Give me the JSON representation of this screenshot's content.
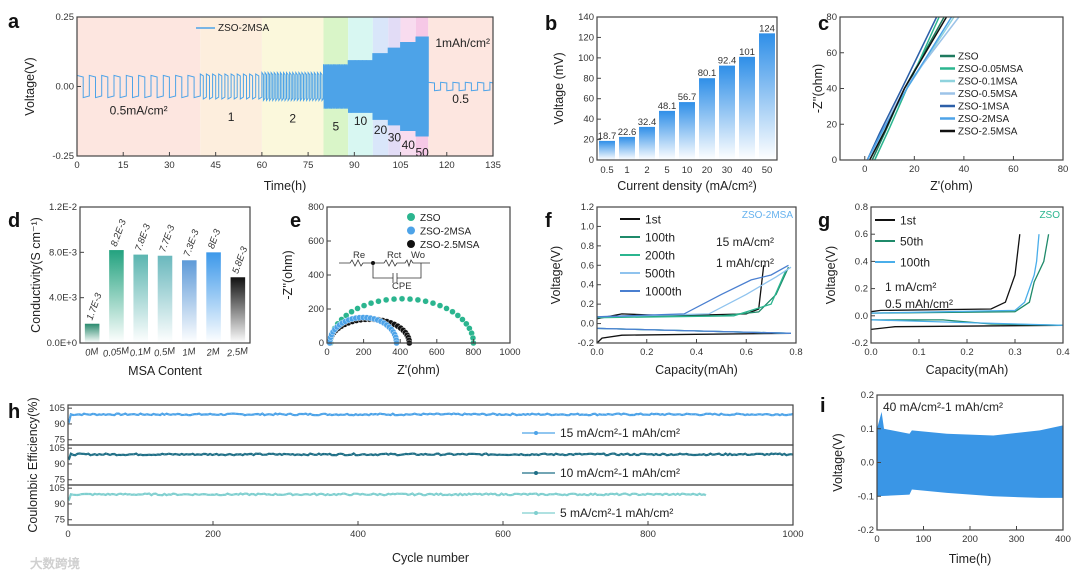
{
  "watermark": "大数跨境",
  "chart_data": [
    {
      "panel": "a",
      "type": "line",
      "xlabel": "Time(h)",
      "ylabel": "Voltage(V)",
      "xlim": [
        0,
        135
      ],
      "ylim": [
        -0.25,
        0.25
      ],
      "xticks": [
        0,
        15,
        30,
        45,
        60,
        75,
        90,
        105,
        120,
        135
      ],
      "xtick_labels": [
        "0",
        "15",
        "30",
        "45",
        "60",
        "75",
        "90",
        "105",
        "120",
        "135"
      ],
      "yticks": [
        -0.25,
        0,
        0.25
      ],
      "ytick_labels": [
        "-0.25",
        "0.00",
        "0.25"
      ],
      "legend": [
        "ZSO-2MSA"
      ],
      "series_color": "#4da3e8",
      "annotation": "1mAh/cm²",
      "segments": [
        {
          "label": "0.5mA/cm²",
          "current": 0.5,
          "start": 0,
          "end": 40,
          "overpotential": 0.04,
          "bg": "#fde6e0"
        },
        {
          "label": "1",
          "current": 1,
          "start": 40,
          "end": 60,
          "overpotential": 0.045,
          "bg": "#fdeedd"
        },
        {
          "label": "2",
          "current": 2,
          "start": 60,
          "end": 80,
          "overpotential": 0.05,
          "bg": "#fbf8dc"
        },
        {
          "label": "5",
          "current": 5,
          "start": 80,
          "end": 88,
          "overpotential": 0.08,
          "bg": "#d9f5c8"
        },
        {
          "label": "10",
          "current": 10,
          "start": 88,
          "end": 96,
          "overpotential": 0.095,
          "bg": "#d8f7f2"
        },
        {
          "label": "20",
          "current": 20,
          "start": 96,
          "end": 101,
          "overpotential": 0.12,
          "bg": "#d9e6fa"
        },
        {
          "label": "30",
          "current": 30,
          "start": 101,
          "end": 105,
          "overpotential": 0.14,
          "bg": "#e2dcf6"
        },
        {
          "label": "40",
          "current": 40,
          "start": 105,
          "end": 110,
          "overpotential": 0.16,
          "bg": "#f8dcef"
        },
        {
          "label": "50",
          "current": 50,
          "start": 110,
          "end": 114,
          "overpotential": 0.18,
          "bg": "#f6c8e6"
        },
        {
          "label": "0.5",
          "current": 0.5,
          "start": 114,
          "end": 135,
          "overpotential": 0.015,
          "bg": "#fde6e0"
        }
      ]
    },
    {
      "panel": "b",
      "type": "bar",
      "xlabel": "Current density (mA/cm²)",
      "ylabel": "Voltage (mV)",
      "categories": [
        "0.5",
        "1",
        "2",
        "5",
        "10",
        "20",
        "30",
        "40",
        "50"
      ],
      "values": [
        18.7,
        22.6,
        32.4,
        48.1,
        56.7,
        80.1,
        92.4,
        101,
        124
      ],
      "ylim": [
        0,
        140
      ],
      "yticks": [
        0,
        20,
        40,
        60,
        80,
        100,
        120,
        140
      ],
      "ytick_labels": [
        "0",
        "20",
        "40",
        "60",
        "80",
        "100",
        "120",
        "140"
      ],
      "bar_color": "#2f8fe8"
    },
    {
      "panel": "c",
      "type": "line",
      "xlabel": "Z'(ohm)",
      "ylabel": "-Z''(ohm)",
      "xlim": [
        -10,
        80
      ],
      "ylim": [
        0,
        80
      ],
      "xticks": [
        0,
        20,
        40,
        60,
        80
      ],
      "xtick_labels": [
        "0",
        "20",
        "40",
        "60",
        "80"
      ],
      "yticks": [
        0,
        20,
        40,
        60,
        80
      ],
      "ytick_labels": [
        "0",
        "20",
        "40",
        "60",
        "80"
      ],
      "series": [
        {
          "name": "ZSO",
          "color": "#1f7a5f",
          "points": [
            [
              3,
              0
            ],
            [
              8,
              15
            ],
            [
              16,
              40
            ],
            [
              32,
              80
            ]
          ]
        },
        {
          "name": "ZSO-0.05MSA",
          "color": "#2bb58f",
          "points": [
            [
              4,
              0
            ],
            [
              10,
              18
            ],
            [
              17,
              40
            ],
            [
              30,
              80
            ]
          ]
        },
        {
          "name": "ZSO-0.1MSA",
          "color": "#8fd3de",
          "points": [
            [
              2,
              0
            ],
            [
              8,
              18
            ],
            [
              17,
              40
            ],
            [
              36,
              80
            ]
          ]
        },
        {
          "name": "ZSO-0.5MSA",
          "color": "#9cc3e8",
          "points": [
            [
              2,
              0
            ],
            [
              7,
              16
            ],
            [
              16,
              40
            ],
            [
              38,
              80
            ]
          ]
        },
        {
          "name": "ZSO-1MSA",
          "color": "#2c5fa8",
          "points": [
            [
              1,
              0
            ],
            [
              6,
              15
            ],
            [
              15,
              40
            ],
            [
              29,
              80
            ]
          ]
        },
        {
          "name": "ZSO-2MSA",
          "color": "#4da3e8",
          "points": [
            [
              1,
              0
            ],
            [
              7,
              16
            ],
            [
              17,
              40
            ],
            [
              35,
              80
            ]
          ]
        },
        {
          "name": "ZSO-2.5MSA",
          "color": "#111111",
          "points": [
            [
              2,
              0
            ],
            [
              8,
              16
            ],
            [
              16,
              40
            ],
            [
              33,
              80
            ]
          ]
        }
      ]
    },
    {
      "panel": "d",
      "type": "bar",
      "xlabel": "MSA Content",
      "ylabel": "Conductivity(S cm⁻¹)",
      "categories": [
        "0M",
        "0.05M",
        "0.1M",
        "0.5M",
        "1M",
        "2M",
        "2.5M"
      ],
      "values": [
        0.0017,
        0.0082,
        0.0078,
        0.0077,
        0.0073,
        0.008,
        0.0058
      ],
      "value_labels": [
        "1.7E-3",
        "8.2E-3",
        "7.8E-3",
        "7.7E-3",
        "7.3E-3",
        "8E-3",
        "5.8E-3"
      ],
      "colors": [
        "#2a8a6e",
        "#23a27f",
        "#5bb5b0",
        "#6ab8bd",
        "#5e9ad8",
        "#3c98ea",
        "#111111"
      ],
      "ylim": [
        0,
        0.012
      ],
      "yticks": [
        0,
        0.004,
        0.008,
        0.012
      ],
      "ytick_labels": [
        "0.0E+0",
        "4.0E-3",
        "8.0E-3",
        "1.2E-2"
      ]
    },
    {
      "panel": "e",
      "type": "scatter",
      "xlabel": "Z'(ohm)",
      "ylabel": "-Z''(ohm)",
      "xlim": [
        0,
        1000
      ],
      "ylim": [
        0,
        800
      ],
      "xticks": [
        0,
        200,
        400,
        600,
        800,
        1000
      ],
      "xtick_labels": [
        "0",
        "200",
        "400",
        "600",
        "800",
        "1000"
      ],
      "yticks": [
        0,
        200,
        400,
        600,
        800
      ],
      "ytick_labels": [
        "0",
        "200",
        "400",
        "600",
        "800"
      ],
      "circuit_labels": [
        "Re",
        "Rct",
        "Wo",
        "CPE"
      ],
      "series": [
        {
          "name": "ZSO",
          "color": "#2bb58f",
          "z_low": 20,
          "z_high": 800,
          "peak": 260
        },
        {
          "name": "ZSO-2MSA",
          "color": "#4da3e8",
          "z_low": 15,
          "z_high": 380,
          "peak": 150
        },
        {
          "name": "ZSO-2.5MSA",
          "color": "#111111",
          "z_low": 15,
          "z_high": 450,
          "peak": 140
        }
      ]
    },
    {
      "panel": "f",
      "type": "line",
      "xlabel": "Capacity(mAh)",
      "ylabel": "Voltage(V)",
      "xlim": [
        0,
        0.8
      ],
      "ylim": [
        -0.2,
        1.2
      ],
      "xticks": [
        0,
        0.2,
        0.4,
        0.6,
        0.8
      ],
      "xtick_labels": [
        "0.0",
        "0.2",
        "0.4",
        "0.6",
        "0.8"
      ],
      "yticks": [
        -0.2,
        0,
        0.2,
        0.4,
        0.6,
        0.8,
        1.0,
        1.2
      ],
      "ytick_labels": [
        "-0.2",
        "0.0",
        "0.2",
        "0.4",
        "0.6",
        "0.8",
        "1.0",
        "1.2"
      ],
      "sample": "ZSO-2MSA",
      "sample_color": "#66b2ee",
      "conditions": [
        "15 mA/cm²",
        "1 mAh/cm²"
      ],
      "series": [
        {
          "name": "1st",
          "color": "#111111",
          "branches": [
            [
              [
                0,
                0.05
              ],
              [
                0.1,
                0.1
              ],
              [
                0.3,
                0.08
              ],
              [
                0.6,
                0.1
              ],
              [
                0.65,
                0.15
              ],
              [
                0.67,
                0.6
              ]
            ],
            [
              [
                0,
                -0.2
              ],
              [
                0.02,
                -0.15
              ],
              [
                0.1,
                -0.12
              ],
              [
                0.4,
                -0.11
              ],
              [
                0.78,
                -0.1
              ]
            ]
          ]
        },
        {
          "name": "100th",
          "color": "#1f8a6a",
          "branches": [
            [
              [
                0,
                0.07
              ],
              [
                0.5,
                0.08
              ],
              [
                0.65,
                0.12
              ],
              [
                0.72,
                0.3
              ],
              [
                0.77,
                0.58
              ]
            ],
            [
              [
                0,
                -0.05
              ],
              [
                0.78,
                -0.1
              ]
            ]
          ]
        },
        {
          "name": "200th",
          "color": "#2bb58f",
          "branches": [
            [
              [
                0,
                0.06
              ],
              [
                0.55,
                0.08
              ],
              [
                0.7,
                0.2
              ],
              [
                0.76,
                0.55
              ]
            ],
            [
              [
                0,
                -0.05
              ],
              [
                0.78,
                -0.1
              ]
            ]
          ]
        },
        {
          "name": "500th",
          "color": "#8fc3ee",
          "branches": [
            [
              [
                0,
                0.07
              ],
              [
                0.45,
                0.1
              ],
              [
                0.6,
                0.3
              ],
              [
                0.72,
                0.48
              ],
              [
                0.78,
                0.58
              ]
            ],
            [
              [
                0,
                -0.05
              ],
              [
                0.78,
                -0.1
              ]
            ]
          ]
        },
        {
          "name": "1000th",
          "color": "#4a7fd0",
          "branches": [
            [
              [
                0,
                0.07
              ],
              [
                0.35,
                0.1
              ],
              [
                0.5,
                0.3
              ],
              [
                0.62,
                0.45
              ],
              [
                0.7,
                0.5
              ],
              [
                0.77,
                0.6
              ]
            ],
            [
              [
                0,
                -0.05
              ],
              [
                0.78,
                -0.1
              ]
            ]
          ]
        }
      ]
    },
    {
      "panel": "g",
      "type": "line",
      "xlabel": "Capacity(mAh)",
      "ylabel": "Voltage(V)",
      "xlim": [
        0,
        0.4
      ],
      "ylim": [
        -0.2,
        0.8
      ],
      "xticks": [
        0,
        0.1,
        0.2,
        0.3,
        0.4
      ],
      "xtick_labels": [
        "0.0",
        "0.1",
        "0.2",
        "0.3",
        "0.4"
      ],
      "yticks": [
        -0.2,
        0,
        0.2,
        0.4,
        0.6,
        0.8
      ],
      "ytick_labels": [
        "-0.2",
        "0.0",
        "0.2",
        "0.4",
        "0.6",
        "0.8"
      ],
      "sample": "ZSO",
      "sample_color": "#2bb58f",
      "conditions": [
        "1 mA/cm²",
        "0.5 mAh/cm²"
      ],
      "series": [
        {
          "name": "1st",
          "color": "#111111",
          "branches": [
            [
              [
                0,
                0.03
              ],
              [
                0.02,
                0.04
              ],
              [
                0.25,
                0.05
              ],
              [
                0.28,
                0.1
              ],
              [
                0.3,
                0.3
              ],
              [
                0.31,
                0.6
              ]
            ],
            [
              [
                0,
                -0.1
              ],
              [
                0.05,
                -0.08
              ],
              [
                0.4,
                -0.07
              ]
            ]
          ]
        },
        {
          "name": "50th",
          "color": "#1f8a6a",
          "branches": [
            [
              [
                0,
                0.02
              ],
              [
                0.3,
                0.03
              ],
              [
                0.33,
                0.1
              ],
              [
                0.34,
                0.25
              ],
              [
                0.36,
                0.4
              ],
              [
                0.37,
                0.6
              ]
            ],
            [
              [
                0,
                -0.03
              ],
              [
                0.15,
                -0.03
              ],
              [
                0.25,
                -0.06
              ],
              [
                0.4,
                -0.07
              ]
            ]
          ]
        },
        {
          "name": "100th",
          "color": "#4aaeea",
          "branches": [
            [
              [
                0,
                0.02
              ],
              [
                0.3,
                0.04
              ],
              [
                0.32,
                0.1
              ],
              [
                0.34,
                0.3
              ],
              [
                0.345,
                0.4
              ],
              [
                0.35,
                0.6
              ]
            ],
            [
              [
                0,
                -0.03
              ],
              [
                0.2,
                -0.05
              ],
              [
                0.4,
                -0.07
              ]
            ]
          ]
        }
      ]
    },
    {
      "panel": "h",
      "type": "scatter",
      "xlabel": "Cycle number",
      "ylabel": "Coulombic Efficiency(%)",
      "xlim": [
        0,
        1000
      ],
      "ylim": [
        70,
        108
      ],
      "xticks": [
        0,
        200,
        400,
        600,
        800,
        1000
      ],
      "xtick_labels": [
        "0",
        "200",
        "400",
        "600",
        "800",
        "1000"
      ],
      "yticks": [
        75,
        90,
        105
      ],
      "ytick_labels": [
        "75",
        "90",
        "105"
      ],
      "series": [
        {
          "name": "15 mA/cm²-1 mAh/cm²",
          "color": "#4da3e8",
          "cycles": 1000,
          "mean_ce": 99.5
        },
        {
          "name": "10 mA/cm²-1 mAh/cm²",
          "color": "#1f6f86",
          "cycles": 1000,
          "mean_ce": 99.5
        },
        {
          "name": "5 mA/cm²-1 mAh/cm²",
          "color": "#7fcfcf",
          "cycles": 880,
          "mean_ce": 99.5
        }
      ]
    },
    {
      "panel": "i",
      "type": "area",
      "xlabel": "Time(h)",
      "ylabel": "Voltage(V)",
      "xlim": [
        0,
        400
      ],
      "ylim": [
        -0.2,
        0.2
      ],
      "xticks": [
        0,
        100,
        200,
        300,
        400
      ],
      "xtick_labels": [
        "0",
        "100",
        "200",
        "300",
        "400"
      ],
      "yticks": [
        -0.2,
        -0.1,
        0,
        0.1,
        0.2
      ],
      "ytick_labels": [
        "-0.2",
        "-0.1",
        "0.0",
        "0.1",
        "0.2"
      ],
      "annotation": "40 mA/cm²-1 mAh/cm²",
      "color": "#3a96e6",
      "upper": [
        [
          0,
          0.1
        ],
        [
          10,
          0.15
        ],
        [
          15,
          0.1
        ],
        [
          70,
          0.085
        ],
        [
          75,
          0.095
        ],
        [
          150,
          0.085
        ],
        [
          250,
          0.08
        ],
        [
          350,
          0.095
        ],
        [
          400,
          0.11
        ]
      ],
      "lower": [
        [
          0,
          -0.1
        ],
        [
          70,
          -0.095
        ],
        [
          75,
          -0.08
        ],
        [
          150,
          -0.09
        ],
        [
          250,
          -0.1
        ],
        [
          350,
          -0.105
        ],
        [
          400,
          -0.105
        ]
      ]
    }
  ]
}
